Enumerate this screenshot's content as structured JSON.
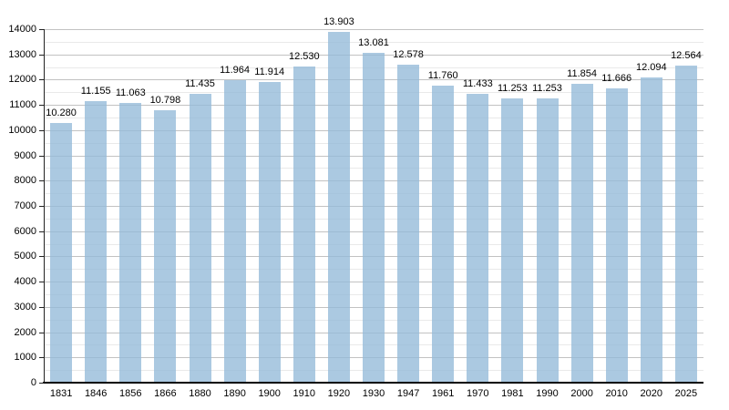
{
  "chart_data": {
    "type": "bar",
    "title": "",
    "categories": [
      "1831",
      "1846",
      "1856",
      "1866",
      "1880",
      "1890",
      "1900",
      "1910",
      "1920",
      "1930",
      "1947",
      "1961",
      "1970",
      "1981",
      "1990",
      "2000",
      "2010",
      "2020",
      "2025"
    ],
    "values": [
      10280,
      11155,
      11063,
      10798,
      11435,
      11964,
      11914,
      12530,
      13903,
      13081,
      12578,
      11760,
      11433,
      11253,
      11253,
      11854,
      11666,
      12094,
      12564
    ],
    "value_labels": [
      "10.280",
      "11.155",
      "11.063",
      "10.798",
      "11.435",
      "11.964",
      "11.914",
      "12.530",
      "13.903",
      "13.081",
      "12.578",
      "11.760",
      "11.433",
      "11.253",
      "11.253",
      "11.854",
      "11.666",
      "12.094",
      "12.564"
    ],
    "xlabel": "",
    "ylabel": "",
    "ylim": [
      0,
      14000
    ],
    "ytick_labels": [
      "0",
      "1000",
      "2000",
      "3000",
      "4000",
      "5000",
      "6000",
      "7000",
      "8000",
      "9000",
      "10000",
      "11000",
      "12000",
      "13000",
      "14000"
    ],
    "ytick_step": 1000,
    "minor_grid_step": 500,
    "grid": "on",
    "legend": "none",
    "colors": {
      "bar_fill": "rgba(148,186,217,0.78)",
      "bar_fill_solid": "#accae1",
      "major_gridline": "#c2c2c2",
      "minor_gridline": "#e9e9e9",
      "axis_line": "#000000",
      "label_text": "#000000",
      "background": "#ffffff"
    }
  }
}
